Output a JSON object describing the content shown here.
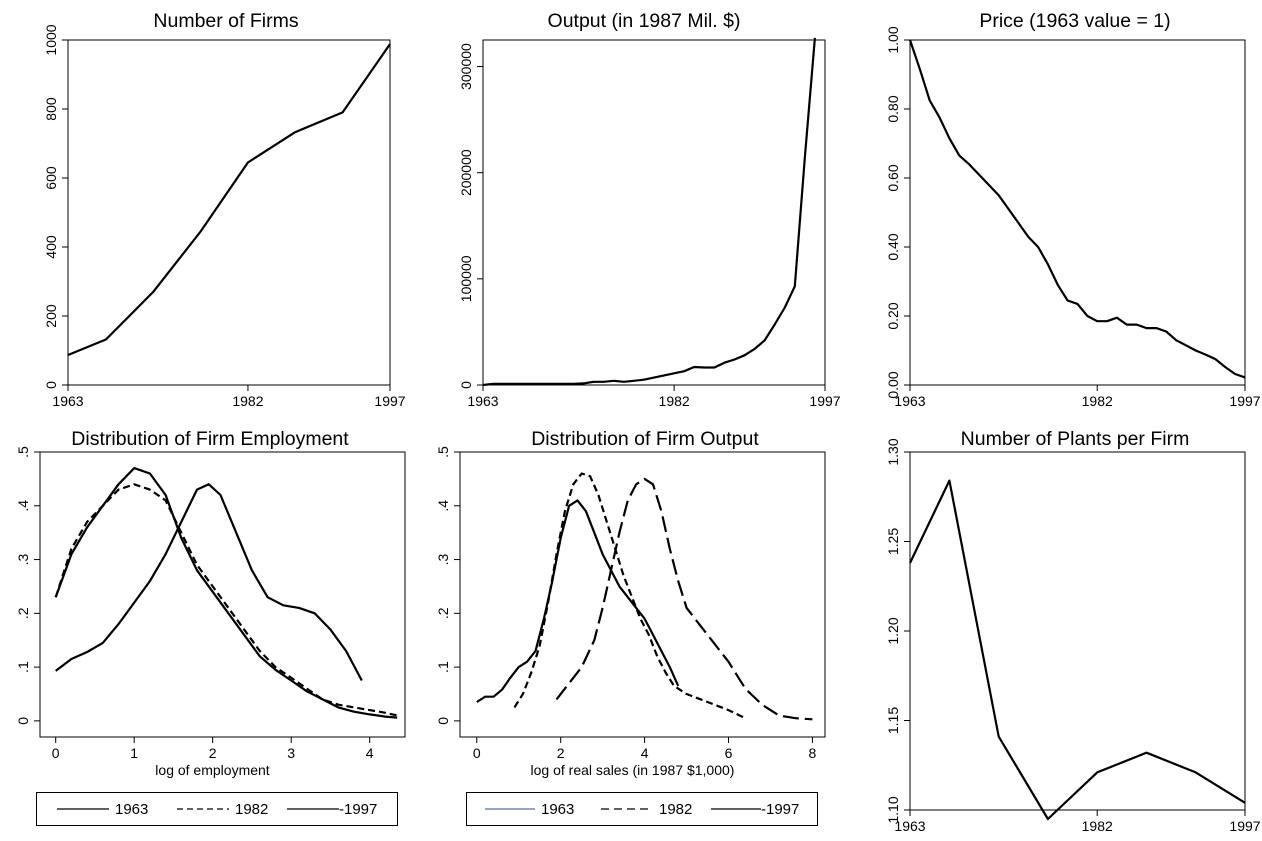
{
  "charts": [
    {
      "id": "firms",
      "type": "line",
      "title": "Number of Firms",
      "xlabel": "",
      "xticks": [
        1963,
        1982,
        1997
      ],
      "yticks": [
        0,
        200,
        400,
        600,
        800,
        1000
      ],
      "ylabels": [
        "0",
        "200",
        "400",
        "600",
        "800",
        "1000"
      ],
      "xlim": [
        1963,
        1997
      ],
      "ylim": [
        0,
        1000
      ],
      "series": [
        {
          "style": "solid",
          "x": [
            1963,
            1967,
            1972,
            1977,
            1982,
            1987,
            1992,
            1997
          ],
          "y": [
            87,
            132,
            270,
            445,
            645,
            733,
            790,
            988
          ]
        }
      ]
    },
    {
      "id": "output",
      "type": "line",
      "title": "Output (in 1987 Mil. $)",
      "xlabel": "",
      "xticks": [
        1963,
        1982,
        1997
      ],
      "yticks": [
        0,
        100000,
        200000,
        300000
      ],
      "ylabels": [
        "0",
        "100000",
        "200000",
        "300000"
      ],
      "xlim": [
        1963,
        1997
      ],
      "ylim": [
        0,
        325000
      ],
      "series": [
        {
          "style": "solid",
          "x": [
            1963,
            1964,
            1966,
            1968,
            1970,
            1972,
            1973,
            1974,
            1975,
            1976,
            1977,
            1978,
            1979,
            1980,
            1981,
            1982,
            1983,
            1984,
            1985,
            1986,
            1987,
            1988,
            1989,
            1990,
            1991,
            1992,
            1993,
            1994,
            1995,
            1996
          ],
          "y": [
            0,
            1000,
            1000,
            1000,
            1000,
            1000,
            1500,
            3000,
            3000,
            4000,
            3000,
            4000,
            5000,
            7000,
            9000,
            11000,
            13000,
            17000,
            16500,
            16500,
            21000,
            24000,
            28000,
            34000,
            42000,
            57000,
            73000,
            93000,
            215000,
            327000
          ]
        }
      ]
    },
    {
      "id": "price",
      "type": "line",
      "title": "Price (1963 value = 1)",
      "xlabel": "",
      "xticks": [
        1963,
        1982,
        1997
      ],
      "yticks": [
        0,
        0.2,
        0.4,
        0.6,
        0.8,
        1.0
      ],
      "ylabels": [
        "0.00",
        "0.20",
        "0.40",
        "0.60",
        "0.80",
        "1.00"
      ],
      "xlim": [
        1963,
        1997
      ],
      "ylim": [
        0,
        1.0
      ],
      "series": [
        {
          "style": "solid",
          "x": [
            1963,
            1964,
            1965,
            1966,
            1967,
            1968,
            1969,
            1970,
            1971,
            1972,
            1973,
            1974,
            1975,
            1976,
            1977,
            1978,
            1979,
            1980,
            1981,
            1982,
            1983,
            1984,
            1985,
            1986,
            1987,
            1988,
            1989,
            1990,
            1991,
            1992,
            1993,
            1994,
            1995,
            1996,
            1997
          ],
          "y": [
            1.0,
            0.915,
            0.825,
            0.775,
            0.715,
            0.665,
            0.64,
            0.61,
            0.58,
            0.55,
            0.51,
            0.47,
            0.43,
            0.4,
            0.35,
            0.29,
            0.245,
            0.235,
            0.2,
            0.185,
            0.185,
            0.195,
            0.175,
            0.175,
            0.165,
            0.165,
            0.155,
            0.13,
            0.115,
            0.1,
            0.088,
            0.075,
            0.052,
            0.032,
            0.022
          ]
        }
      ]
    },
    {
      "id": "emp_dist",
      "type": "line",
      "title": "Distribution of Firm Employment",
      "xlabel": "log of employment",
      "xticks": [
        0,
        1,
        2,
        3,
        4
      ],
      "yticks": [
        0,
        0.1,
        0.2,
        0.3,
        0.4,
        0.5
      ],
      "ylabels": [
        "0",
        ".1",
        ".2",
        ".3",
        ".4",
        ".5"
      ],
      "xlim": [
        -0.2,
        4.45
      ],
      "ylim": [
        -0.03,
        0.5
      ],
      "legend": [
        "1963",
        "1982",
        "-1997"
      ],
      "legend_styles": [
        "solid",
        "dash",
        "solid"
      ],
      "series": [
        {
          "name": "1963",
          "style": "solid",
          "x": [
            0,
            0.2,
            0.4,
            0.6,
            0.8,
            1.0,
            1.2,
            1.4,
            1.6,
            1.8,
            2.0,
            2.2,
            2.4,
            2.6,
            2.8,
            3.0,
            3.2,
            3.4,
            3.6,
            3.8,
            4.0,
            4.2,
            4.35
          ],
          "y": [
            0.23,
            0.31,
            0.36,
            0.4,
            0.44,
            0.47,
            0.46,
            0.42,
            0.34,
            0.28,
            0.24,
            0.2,
            0.16,
            0.12,
            0.095,
            0.075,
            0.055,
            0.04,
            0.025,
            0.017,
            0.012,
            0.008,
            0.006
          ]
        },
        {
          "name": "1982",
          "style": "dash",
          "x": [
            0,
            0.2,
            0.4,
            0.6,
            0.8,
            1.0,
            1.2,
            1.4,
            1.6,
            1.8,
            2.0,
            2.2,
            2.4,
            2.6,
            2.8,
            3.0,
            3.2,
            3.4,
            3.6,
            3.8,
            4.0,
            4.2,
            4.35
          ],
          "y": [
            0.23,
            0.32,
            0.37,
            0.4,
            0.43,
            0.44,
            0.43,
            0.41,
            0.35,
            0.29,
            0.25,
            0.21,
            0.17,
            0.13,
            0.1,
            0.08,
            0.06,
            0.04,
            0.03,
            0.025,
            0.02,
            0.015,
            0.01
          ]
        },
        {
          "name": "1997",
          "style": "solid",
          "x": [
            0,
            0.2,
            0.4,
            0.6,
            0.8,
            1.0,
            1.2,
            1.4,
            1.6,
            1.8,
            1.95,
            2.1,
            2.3,
            2.5,
            2.7,
            2.9,
            3.1,
            3.3,
            3.5,
            3.7,
            3.9
          ],
          "y": [
            0.093,
            0.115,
            0.128,
            0.145,
            0.18,
            0.22,
            0.26,
            0.31,
            0.37,
            0.43,
            0.44,
            0.42,
            0.35,
            0.28,
            0.23,
            0.215,
            0.21,
            0.2,
            0.17,
            0.13,
            0.075
          ]
        }
      ]
    },
    {
      "id": "out_dist",
      "type": "line",
      "title": "Distribution of Firm Output",
      "xlabel": "log of real sales (in 1987 $1,000)",
      "xticks": [
        0,
        2,
        4,
        6,
        8
      ],
      "yticks": [
        0,
        0.1,
        0.2,
        0.3,
        0.4,
        0.5
      ],
      "ylabels": [
        "0",
        ".1",
        ".2",
        ".3",
        ".4",
        ".5"
      ],
      "xlim": [
        -0.4,
        8.3
      ],
      "ylim": [
        -0.03,
        0.5
      ],
      "legend": [
        "1963",
        "1982",
        "-1997"
      ],
      "legend_styles": [
        "thin",
        "dash",
        "solid"
      ],
      "series": [
        {
          "name": "1963",
          "style": "solid",
          "x": [
            0,
            0.2,
            0.4,
            0.6,
            0.8,
            1.0,
            1.2,
            1.4,
            1.6,
            1.8,
            2.0,
            2.2,
            2.4,
            2.6,
            2.8,
            3.0,
            3.2,
            3.4,
            3.6,
            3.8,
            4.0,
            4.2,
            4.4,
            4.6,
            4.8
          ],
          "y": [
            0.035,
            0.045,
            0.045,
            0.058,
            0.08,
            0.1,
            0.11,
            0.13,
            0.19,
            0.26,
            0.34,
            0.4,
            0.41,
            0.39,
            0.35,
            0.31,
            0.28,
            0.25,
            0.23,
            0.21,
            0.19,
            0.16,
            0.13,
            0.1,
            0.065
          ]
        },
        {
          "name": "1982",
          "style": "dash",
          "x": [
            0.9,
            1.1,
            1.3,
            1.5,
            1.7,
            1.9,
            2.1,
            2.3,
            2.5,
            2.7,
            2.9,
            3.1,
            3.3,
            3.5,
            3.7,
            3.9,
            4.1,
            4.3,
            4.5,
            4.7,
            5.0,
            5.5,
            6.0,
            6.4
          ],
          "y": [
            0.025,
            0.05,
            0.09,
            0.14,
            0.22,
            0.31,
            0.39,
            0.44,
            0.46,
            0.455,
            0.42,
            0.37,
            0.32,
            0.27,
            0.23,
            0.19,
            0.16,
            0.12,
            0.09,
            0.065,
            0.05,
            0.035,
            0.02,
            0.005
          ]
        },
        {
          "name": "1997",
          "style": "longdash",
          "x": [
            1.9,
            2.2,
            2.5,
            2.8,
            3.0,
            3.2,
            3.4,
            3.6,
            3.8,
            4.0,
            4.2,
            4.4,
            4.6,
            4.8,
            5.0,
            5.3,
            5.6,
            6.0,
            6.4,
            6.8,
            7.2,
            7.6,
            8.0
          ],
          "y": [
            0.04,
            0.07,
            0.1,
            0.15,
            0.21,
            0.28,
            0.35,
            0.41,
            0.44,
            0.45,
            0.44,
            0.39,
            0.32,
            0.26,
            0.21,
            0.18,
            0.15,
            0.11,
            0.06,
            0.03,
            0.01,
            0.005,
            0.003
          ]
        }
      ]
    },
    {
      "id": "plants",
      "type": "line",
      "title": "Number of Plants per Firm",
      "xlabel": "",
      "xticks": [
        1963,
        1982,
        1997
      ],
      "yticks": [
        1.1,
        1.15,
        1.2,
        1.25,
        1.3
      ],
      "ylabels": [
        "1.10",
        "1.15",
        "1.20",
        "1.25",
        "1.30"
      ],
      "xlim": [
        1963,
        1997
      ],
      "ylim": [
        1.1,
        1.3
      ],
      "series": [
        {
          "style": "solid",
          "x": [
            1963,
            1967,
            1972,
            1977,
            1982,
            1987,
            1992,
            1997
          ],
          "y": [
            1.238,
            1.284,
            1.141,
            1.095,
            1.121,
            1.132,
            1.121,
            1.104
          ]
        }
      ]
    }
  ]
}
